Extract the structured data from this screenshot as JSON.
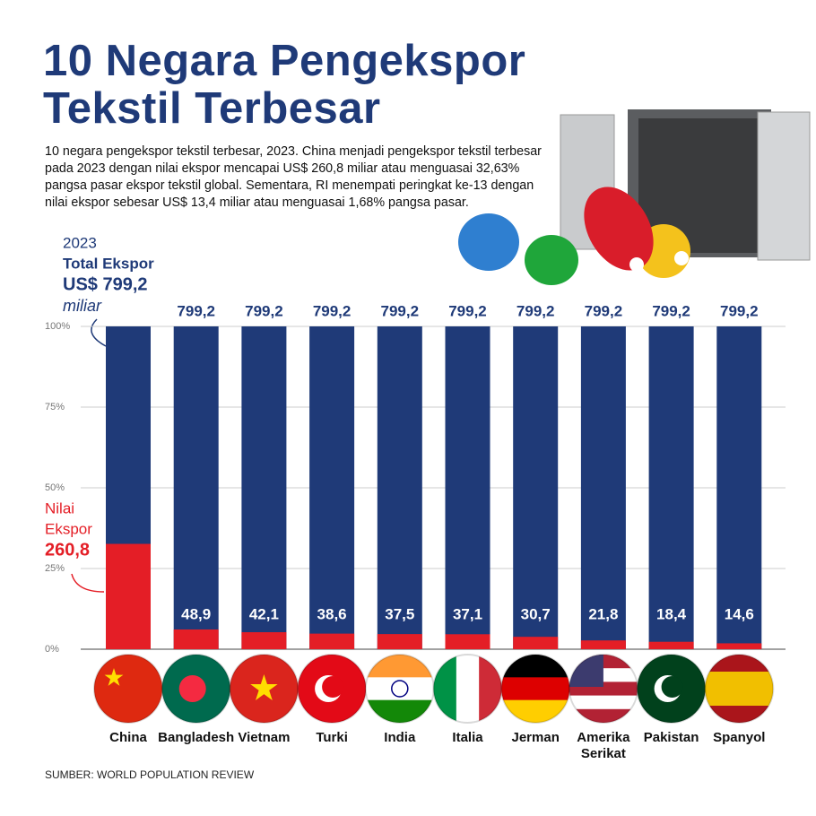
{
  "chart_data": {
    "type": "bar",
    "title": "10 Negara Pengekspor Tekstil Terbesar",
    "subtitle": "10 negara pengekspor tekstil terbesar, 2023. China menjadi pengekspor tekstil terbesar pada 2023 dengan nilai ekspor mencapai US$ 260,8 miliar atau menguasai 32,63% pangsa pasar ekspor tekstil global. Sementara, RI menempati peringkat ke-13 dengan nilai ekspor sebesar US$ 13,4 miliar atau menguasai 1,68% pangsa pasar.",
    "categories": [
      "China",
      "Bangladesh",
      "Vietnam",
      "Turki",
      "India",
      "Italia",
      "Jerman",
      "Amerika Serikat",
      "Pakistan",
      "Spanyol"
    ],
    "values": [
      260.8,
      48.9,
      42.1,
      38.6,
      37.5,
      37.1,
      30.7,
      21.8,
      18.4,
      14.6
    ],
    "value_labels": [
      "260,8",
      "48,9",
      "42,1",
      "38,6",
      "37,5",
      "37,1",
      "30,7",
      "21,8",
      "18,4",
      "14,6"
    ],
    "color": "#e41e26",
    "totals": [
      799.2,
      799.2,
      799.2,
      799.2,
      799.2,
      799.2,
      799.2,
      799.2,
      799.2,
      799.2
    ],
    "total_labels": [
      "US$ 799,2",
      "799,2",
      "799,2",
      "799,2",
      "799,2",
      "799,2",
      "799,2",
      "799,2",
      "799,2",
      "799,2"
    ],
    "total_color": "#1f3a78",
    "total_annotation": [
      "2023",
      "Total Ekspor",
      "miliar"
    ],
    "value_annotation": [
      "Nilai",
      "Ekspor"
    ],
    "ylim": [
      0,
      799.2
    ],
    "yticks": [
      {
        "value": 0,
        "label": "0%"
      },
      {
        "value": 199.8,
        "label": "25%"
      },
      {
        "value": 399.6,
        "label": "50%"
      },
      {
        "value": 599.4,
        "label": "75%"
      },
      {
        "value": 799.2,
        "label": "100%"
      }
    ],
    "grid": true,
    "source": "SUMBER: WORLD POPULATION REVIEW"
  }
}
